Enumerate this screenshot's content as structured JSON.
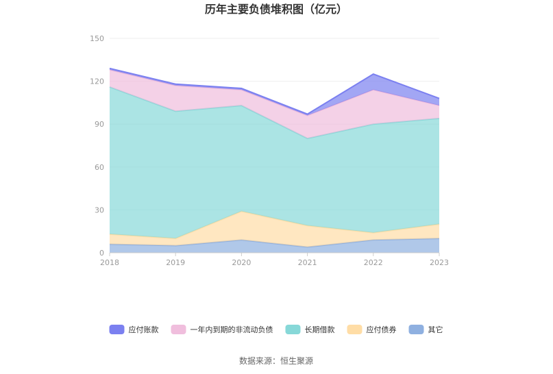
{
  "chart_data": {
    "type": "area",
    "stacked": true,
    "title": "历年主要负债堆积图（亿元）",
    "x": [
      "2018",
      "2019",
      "2020",
      "2021",
      "2022",
      "2023"
    ],
    "ylim": [
      0,
      150
    ],
    "yticks": [
      "0",
      "30",
      "60",
      "90",
      "120",
      "150"
    ],
    "grid": true,
    "legend_position": "bottom",
    "series": [
      {
        "name": "其它",
        "color": "#8fb0e0",
        "values": [
          6,
          5,
          9,
          4,
          9,
          10
        ]
      },
      {
        "name": "应付债券",
        "color": "#ffdda6",
        "values": [
          7,
          5,
          20,
          15,
          5,
          10
        ]
      },
      {
        "name": "长期借款",
        "color": "#87d8d8",
        "values": [
          103,
          89,
          74,
          61,
          76,
          74
        ]
      },
      {
        "name": "一年内到期的非流动负债",
        "color": "#f0bedd",
        "values": [
          12,
          18,
          11,
          16,
          24,
          9
        ]
      },
      {
        "name": "应付账款",
        "color": "#7b80f0",
        "values": [
          1,
          1,
          1,
          1,
          11,
          5
        ]
      }
    ],
    "legend_order": [
      "应付账款",
      "一年内到期的非流动负债",
      "长期借款",
      "应付债券",
      "其它"
    ]
  },
  "source_text": "数据来源：恒生聚源"
}
